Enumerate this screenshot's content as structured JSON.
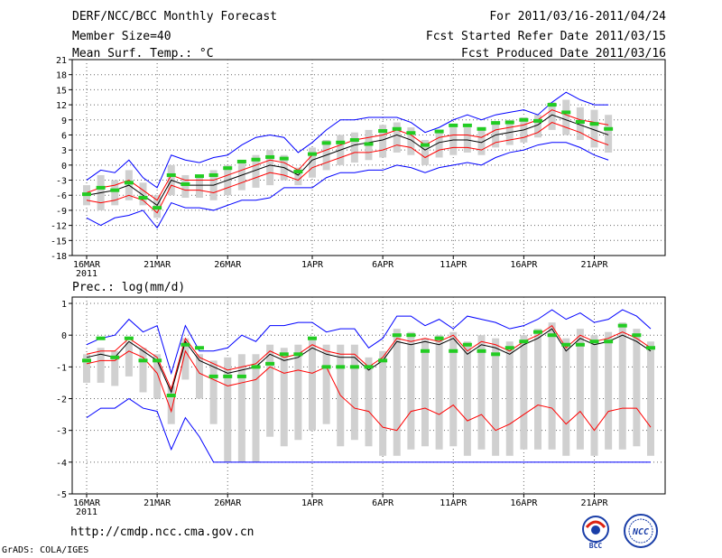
{
  "header": {
    "line1": "DERF/NCC/BCC Monthly Forecast",
    "line2": "Member Size=40",
    "line3": "Mean Surf. Temp.: °C",
    "right1": "For 2011/03/16-2011/04/24",
    "right2": "Fcst Started Refer Date 2011/03/15",
    "right3": "Fcst Produced Date 2011/03/16"
  },
  "footer": {
    "url": "http://cmdp.ncc.cma.gov.cn",
    "credit": "GrADS: COLA/IGES",
    "logo_bcc": "BCC",
    "logo_ncc": "NCC"
  },
  "colors": {
    "mean": "#000000",
    "spread": "#ff0000",
    "envelope": "#0000ff",
    "box": "#d0d0d0",
    "obs": "#22cc22",
    "grid": "#666666"
  },
  "chart_data": [
    {
      "type": "line",
      "name": "temperature",
      "ylabel": "Mean Surf. Temp.: °C",
      "ylim": [
        -18,
        21
      ],
      "yticks": [
        -18,
        -15,
        -12,
        -9,
        -6,
        -3,
        0,
        3,
        6,
        9,
        12,
        15,
        18,
        21
      ],
      "xlim": [
        0,
        40
      ],
      "xticks": [
        {
          "x": 0,
          "label": "16MAR",
          "label2": "2011"
        },
        {
          "x": 5,
          "label": "21MAR"
        },
        {
          "x": 10,
          "label": "26MAR"
        },
        {
          "x": 16,
          "label": "1APR"
        },
        {
          "x": 21,
          "label": "6APR"
        },
        {
          "x": 26,
          "label": "11APR"
        },
        {
          "x": 31,
          "label": "16APR"
        },
        {
          "x": 36,
          "label": "21APR"
        }
      ],
      "series": [
        {
          "name": "ensemble-mean",
          "values": [
            -6,
            -5.5,
            -5,
            -4,
            -6,
            -8,
            -3,
            -4,
            -4,
            -4,
            -3,
            -2,
            -1,
            0,
            -0.5,
            -2,
            1,
            2,
            3,
            4,
            4.5,
            5,
            6,
            5,
            3,
            4.5,
            5,
            5,
            4.5,
            6,
            6.5,
            7,
            8,
            10,
            9,
            8,
            7,
            6
          ]
        },
        {
          "name": "upper-spread",
          "values": [
            -5.5,
            -4.5,
            -4,
            -3,
            -5,
            -7,
            -2,
            -3,
            -3,
            -3,
            -2,
            -1,
            0,
            1,
            0.5,
            -1,
            2,
            3,
            4,
            5,
            5.5,
            6,
            7,
            6,
            4,
            5.5,
            6,
            6,
            5.5,
            7,
            7.5,
            8,
            9,
            11,
            10,
            9,
            8.5,
            8
          ]
        },
        {
          "name": "lower-spread",
          "values": [
            -7,
            -7.5,
            -7,
            -6,
            -7,
            -9.5,
            -4,
            -5,
            -5,
            -5.5,
            -4.5,
            -3.5,
            -2.5,
            -1.5,
            -2,
            -3,
            -0.5,
            0.5,
            1.5,
            2.5,
            2.5,
            3,
            4,
            3.5,
            1.5,
            3,
            3.5,
            3.5,
            3,
            4.5,
            5,
            5.5,
            6.5,
            8.5,
            7.5,
            6.5,
            5,
            4
          ]
        },
        {
          "name": "upper-envelope",
          "values": [
            -3,
            -1,
            -1.5,
            1,
            -2.5,
            -4.5,
            2,
            1,
            0.5,
            1.5,
            2,
            4,
            5.5,
            6,
            5.5,
            2.5,
            4.5,
            7,
            9,
            9,
            9.5,
            9.5,
            9.5,
            8.5,
            6.5,
            7.5,
            9,
            10,
            9,
            10,
            10.5,
            11,
            10,
            12.5,
            14.5,
            13,
            12,
            12
          ]
        },
        {
          "name": "lower-envelope",
          "values": [
            -10.5,
            -12,
            -10.5,
            -10,
            -9,
            -12.5,
            -7.5,
            -8.5,
            -8.5,
            -9,
            -8,
            -7,
            -7,
            -6.5,
            -4.5,
            -4.5,
            -4.5,
            -2.5,
            -1.5,
            -1.5,
            -1,
            -1,
            0,
            -0.5,
            -1.5,
            -0.5,
            0,
            0.5,
            0,
            1.5,
            2.5,
            3,
            4,
            4.5,
            4.5,
            3.5,
            2,
            1
          ]
        },
        {
          "name": "observed",
          "values": [
            -5.8,
            -4.5,
            -5,
            -3.5,
            -6.5,
            -8.5,
            -2,
            -3.8,
            -2.2,
            -2,
            -0.6,
            0.7,
            1.1,
            1.6,
            1.3,
            -1.3,
            2.2,
            4.4,
            4.5,
            5,
            4.2,
            6.8,
            7.2,
            6.4,
            4,
            6.7,
            7.9,
            7.9,
            7.2,
            8.4,
            8.5,
            9,
            8.8,
            12,
            10.5,
            8.6,
            8.2,
            7.2
          ]
        },
        {
          "name": "box-high",
          "values": [
            -4,
            -2,
            -3,
            -1,
            -3.5,
            -6,
            0,
            -2,
            -2,
            -1,
            0,
            1,
            2,
            3,
            2,
            -0.5,
            3.5,
            5,
            6,
            6.5,
            7,
            8,
            8.5,
            7.5,
            5,
            6.5,
            7.5,
            7.5,
            7,
            8.5,
            9,
            9.5,
            10,
            12.5,
            13,
            11.5,
            11,
            10
          ]
        },
        {
          "name": "box-low",
          "values": [
            -8,
            -9,
            -8,
            -7,
            -8,
            -10.5,
            -6,
            -6.5,
            -6.5,
            -7,
            -6,
            -5,
            -4.5,
            -4,
            -3,
            -4,
            -2.5,
            -1,
            0,
            0.5,
            1,
            1.5,
            2.5,
            2,
            0,
            1.5,
            2,
            2.5,
            2,
            3.5,
            4,
            4.5,
            5.5,
            7,
            6,
            5,
            3.5,
            2.5
          ]
        }
      ]
    },
    {
      "type": "line",
      "name": "precipitation",
      "ylabel": "Prec.: log(mm/d)",
      "ylim": [
        -5,
        1.2
      ],
      "yticks": [
        -5,
        -4,
        -3,
        -2,
        -1,
        0,
        1
      ],
      "xlim": [
        0,
        40
      ],
      "xticks": [
        {
          "x": 0,
          "label": "16MAR",
          "label2": "2011"
        },
        {
          "x": 5,
          "label": "21MAR"
        },
        {
          "x": 10,
          "label": "26MAR"
        },
        {
          "x": 16,
          "label": "1APR"
        },
        {
          "x": 21,
          "label": "6APR"
        },
        {
          "x": 26,
          "label": "11APR"
        },
        {
          "x": 31,
          "label": "16APR"
        },
        {
          "x": 36,
          "label": "21APR"
        }
      ],
      "series": [
        {
          "name": "ensemble-mean",
          "values": [
            -0.7,
            -0.6,
            -0.7,
            -0.2,
            -0.5,
            -0.8,
            -1.8,
            -0.2,
            -0.8,
            -1.0,
            -1.2,
            -1.1,
            -1.0,
            -0.6,
            -0.8,
            -0.7,
            -0.4,
            -0.6,
            -0.7,
            -0.7,
            -1.1,
            -0.8,
            -0.2,
            -0.3,
            -0.2,
            -0.3,
            -0.1,
            -0.6,
            -0.3,
            -0.4,
            -0.6,
            -0.3,
            -0.1,
            0.2,
            -0.5,
            -0.1,
            -0.3,
            -0.2,
            0.0,
            -0.2,
            -0.5
          ]
        },
        {
          "name": "upper-spread",
          "values": [
            -0.6,
            -0.5,
            -0.5,
            -0.1,
            -0.4,
            -0.7,
            -1.7,
            -0.1,
            -0.7,
            -0.9,
            -1.1,
            -1.0,
            -0.9,
            -0.5,
            -0.7,
            -0.6,
            -0.3,
            -0.5,
            -0.6,
            -0.6,
            -1.0,
            -0.7,
            -0.1,
            -0.2,
            -0.1,
            -0.2,
            0.0,
            -0.5,
            -0.2,
            -0.3,
            -0.5,
            -0.2,
            0.0,
            0.3,
            -0.4,
            0.0,
            -0.2,
            -0.1,
            0.1,
            -0.1,
            -0.4
          ]
        },
        {
          "name": "lower-spread",
          "values": [
            -0.9,
            -0.8,
            -0.8,
            -0.5,
            -0.7,
            -1.2,
            -2.4,
            -0.5,
            -1.2,
            -1.4,
            -1.6,
            -1.5,
            -1.4,
            -1.0,
            -1.2,
            -1.1,
            -1.2,
            -1.0,
            -1.9,
            -2.3,
            -2.4,
            -2.9,
            -3.0,
            -2.4,
            -2.3,
            -2.5,
            -2.2,
            -2.7,
            -2.5,
            -3.0,
            -2.8,
            -2.5,
            -2.2,
            -2.3,
            -2.8,
            -2.4,
            -3.0,
            -2.4,
            -2.3,
            -2.3,
            -2.9
          ]
        },
        {
          "name": "upper-envelope",
          "values": [
            -0.3,
            -0.1,
            0.0,
            0.5,
            0.1,
            0.3,
            -1.2,
            0.3,
            -0.5,
            -0.5,
            -0.4,
            0.0,
            -0.2,
            0.3,
            0.3,
            0.4,
            0.4,
            0.1,
            0.2,
            0.2,
            -0.4,
            -0.1,
            0.6,
            0.6,
            0.3,
            0.5,
            0.2,
            0.6,
            0.5,
            0.4,
            0.2,
            0.3,
            0.5,
            0.8,
            0.5,
            0.7,
            0.4,
            0.5,
            0.8,
            0.6,
            0.2
          ]
        },
        {
          "name": "lower-envelope",
          "values": [
            -2.6,
            -2.3,
            -2.3,
            -2.0,
            -2.3,
            -2.4,
            -3.6,
            -2.6,
            -3.2,
            -4.0,
            -4.0,
            -4.0,
            -4.0,
            -4.0,
            -4.0,
            -4.0,
            -4.0,
            -4.0,
            -4.0,
            -4.0,
            -4.0,
            -4.0,
            -4.0,
            -4.0,
            -4.0,
            -4.0,
            -4.0,
            -4.0,
            -4.0,
            -4.0,
            -4.0,
            -4.0,
            -4.0,
            -4.0,
            -4.0,
            -4.0,
            -4.0,
            -4.0,
            -4.0,
            -4.0,
            -4.0
          ]
        },
        {
          "name": "observed",
          "values": [
            -0.8,
            -0.1,
            -0.7,
            -0.1,
            -0.8,
            -0.8,
            -1.9,
            -0.3,
            -0.4,
            -1.3,
            -1.3,
            -1.3,
            -1.0,
            -0.9,
            -0.6,
            -0.6,
            -0.1,
            -1.0,
            -1.0,
            -1.0,
            -1.0,
            -0.8,
            0.0,
            0.0,
            -0.5,
            -0.1,
            -0.5,
            -0.3,
            -0.5,
            -0.6,
            -0.4,
            -0.2,
            0.1,
            0.0,
            -0.3,
            -0.3,
            -0.2,
            -0.2,
            0.3,
            0.0,
            -0.4
          ]
        },
        {
          "name": "box-high",
          "values": [
            -0.6,
            -0.4,
            -0.5,
            -0.2,
            -0.4,
            -0.6,
            -1.6,
            -0.1,
            -0.6,
            -0.8,
            -0.7,
            -0.6,
            -0.6,
            -0.3,
            -0.4,
            -0.3,
            -0.1,
            -0.3,
            -0.3,
            -0.3,
            -0.7,
            -0.5,
            0.2,
            0.1,
            -0.1,
            0.0,
            0.1,
            -0.2,
            0.0,
            -0.1,
            -0.2,
            0.0,
            0.2,
            0.4,
            -0.1,
            0.2,
            0.0,
            0.1,
            0.4,
            0.2,
            -0.2
          ]
        },
        {
          "name": "box-low",
          "values": [
            -1.5,
            -1.5,
            -1.6,
            -1.3,
            -1.8,
            -2.0,
            -2.8,
            -1.4,
            -2.0,
            -2.8,
            -4.0,
            -4.0,
            -4.0,
            -3.2,
            -3.5,
            -3.3,
            -3.0,
            -2.8,
            -3.5,
            -3.3,
            -3.5,
            -3.8,
            -3.8,
            -3.6,
            -3.5,
            -3.6,
            -3.5,
            -3.8,
            -3.6,
            -3.8,
            -3.8,
            -3.6,
            -3.6,
            -3.6,
            -3.8,
            -3.6,
            -3.8,
            -3.6,
            -3.6,
            -3.5,
            -3.8
          ]
        }
      ]
    }
  ]
}
